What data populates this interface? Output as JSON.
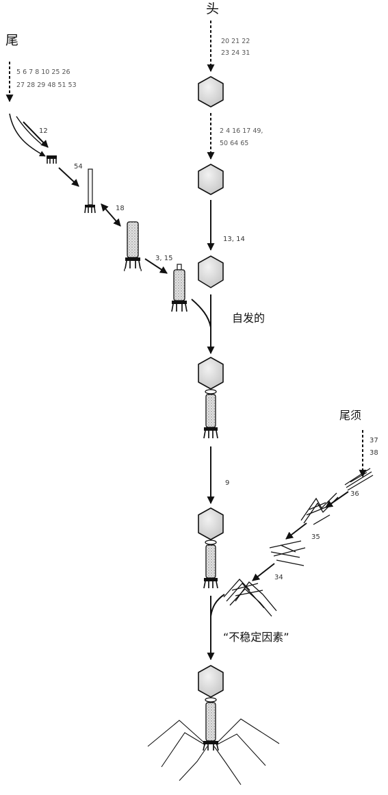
{
  "labels": {
    "head": "头",
    "tail": "尾",
    "tail_fibers": "尾须",
    "spontaneous": "自发的",
    "unstable_factor": "“不稳定因素”"
  },
  "head_genes": {
    "line1": "20  21  22",
    "line2": "23  24  31",
    "line3": "2  4  16  17  49,",
    "line4": "50  64  65"
  },
  "tail_genes": {
    "line1": "5  6  7  8  10  25  26",
    "line2": "27  28  29  48  51  53"
  },
  "fiber_genes": {
    "line1": "37",
    "line2": "38"
  },
  "step_numbers": {
    "n12": "12",
    "n54": "54",
    "n18": "18",
    "n3_15": "3, 15",
    "n13_14": "13, 14",
    "n9": "9",
    "n36": "36",
    "n35": "35",
    "n34": "34"
  },
  "colors": {
    "ink": "#111111",
    "body_fill": "#d9d9d9",
    "text_gray": "#555555"
  }
}
